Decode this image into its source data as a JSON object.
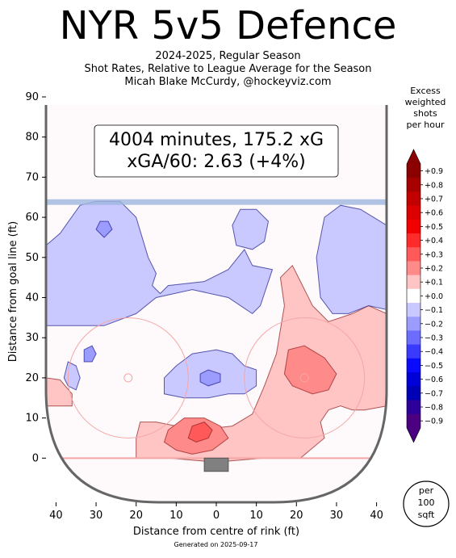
{
  "title": "NYR 5v5 Defence",
  "subtitle_lines": [
    "2024-2025, Regular Season",
    "Shot Rates, Relative to League Average for the Season",
    "Micah Blake McCurdy, @hockeyviz.com"
  ],
  "footer": "Generated on 2025-09-17",
  "summary_box": {
    "line1": "4004 minutes, 175.2 xG",
    "line2": "xGA/60: 2.63 (+4%)"
  },
  "legend": {
    "title_lines": [
      "Excess",
      "weighted",
      "shots",
      "per hour"
    ],
    "labels": [
      "+0.9",
      "+0.8",
      "+0.7",
      "+0.6",
      "+0.5",
      "+0.4",
      "+0.3",
      "+0.2",
      "+0.1",
      "+0.0",
      "−0.1",
      "−0.2",
      "−0.3",
      "−0.4",
      "−0.5",
      "−0.6",
      "−0.7",
      "−0.8",
      "−0.9"
    ],
    "colors": [
      "#8b0000",
      "#a60000",
      "#c20000",
      "#dd0000",
      "#f20000",
      "#ff2a2a",
      "#ff5959",
      "#ff8a8a",
      "#ffc4c4",
      "#ffffff",
      "#c9c9ff",
      "#9c9cff",
      "#6c6cff",
      "#3a3aff",
      "#0a0aff",
      "#0000d8",
      "#0000b5",
      "#2d009a",
      "#4b0082"
    ],
    "unit_badge": [
      "per",
      "100",
      "sqft"
    ]
  },
  "chart_data": {
    "type": "heatmap",
    "title": "NYR 5v5 Defence",
    "xlabel": "Distance from centre of rink (ft)",
    "ylabel": "Distance from goal line (ft)",
    "xlim": [
      -42.5,
      42.5
    ],
    "ylim": [
      -11,
      90
    ],
    "x_ticks": [
      {
        "v": -40,
        "label": "40"
      },
      {
        "v": -30,
        "label": "30"
      },
      {
        "v": -20,
        "label": "20"
      },
      {
        "v": -10,
        "label": "10"
      },
      {
        "v": 0,
        "label": "0"
      },
      {
        "v": 10,
        "label": "10"
      },
      {
        "v": 20,
        "label": "20"
      },
      {
        "v": 30,
        "label": "30"
      },
      {
        "v": 40,
        "label": "40"
      }
    ],
    "y_ticks": [
      0,
      10,
      20,
      30,
      40,
      50,
      60,
      70,
      80,
      90
    ],
    "value_range": [
      -0.9,
      0.9
    ],
    "regions": [
      {
        "level": 0.1,
        "points": [
          [
            -38,
            13
          ],
          [
            -42.5,
            13
          ],
          [
            -42.5,
            20
          ],
          [
            -39,
            19.5
          ],
          [
            -36,
            16
          ],
          [
            -36,
            13
          ]
        ]
      },
      {
        "level": 0.1,
        "points": [
          [
            -20,
            0
          ],
          [
            -20,
            5
          ],
          [
            -19,
            9
          ],
          [
            -15,
            9
          ],
          [
            -5,
            7
          ],
          [
            4,
            8
          ],
          [
            9,
            11
          ],
          [
            12,
            18
          ],
          [
            15,
            26
          ],
          [
            16,
            32
          ],
          [
            17,
            38
          ],
          [
            16,
            45
          ],
          [
            19,
            48
          ],
          [
            21,
            44
          ],
          [
            24,
            38
          ],
          [
            28,
            34
          ],
          [
            34,
            36
          ],
          [
            38,
            38
          ],
          [
            42.5,
            36
          ],
          [
            42.5,
            13
          ],
          [
            37,
            12
          ],
          [
            34,
            12
          ],
          [
            31,
            13
          ],
          [
            28,
            12
          ],
          [
            26,
            9
          ],
          [
            27,
            5
          ],
          [
            21,
            0
          ],
          [
            12,
            0
          ],
          [
            0,
            -1
          ],
          [
            -12,
            0
          ]
        ]
      },
      {
        "level": 0.2,
        "points": [
          [
            -13,
            4
          ],
          [
            -12,
            7
          ],
          [
            -8,
            10
          ],
          [
            -3,
            10
          ],
          [
            1,
            8
          ],
          [
            3,
            5
          ],
          [
            -1,
            2
          ],
          [
            -6,
            1
          ],
          [
            -10,
            2
          ]
        ]
      },
      {
        "level": 0.2,
        "points": [
          [
            18,
            27
          ],
          [
            17,
            21
          ],
          [
            19,
            18
          ],
          [
            24,
            16
          ],
          [
            28,
            17
          ],
          [
            30,
            21
          ],
          [
            27,
            25
          ],
          [
            22,
            28
          ]
        ]
      },
      {
        "level": 0.3,
        "points": [
          [
            -7,
            5
          ],
          [
            -6,
            8
          ],
          [
            -3,
            9
          ],
          [
            -1,
            7
          ],
          [
            -2,
            5
          ],
          [
            -5,
            4
          ]
        ]
      },
      {
        "level": -0.1,
        "points": [
          [
            -42.5,
            53
          ],
          [
            -39,
            56
          ],
          [
            -34,
            63
          ],
          [
            -30,
            64
          ],
          [
            -24,
            64
          ],
          [
            -20,
            60
          ],
          [
            -17,
            50
          ],
          [
            -15,
            46
          ],
          [
            -16,
            43
          ],
          [
            -14,
            41
          ],
          [
            -12,
            43
          ],
          [
            -3,
            44
          ],
          [
            3,
            47
          ],
          [
            7,
            52
          ],
          [
            9,
            48
          ],
          [
            14,
            47
          ],
          [
            11,
            38
          ],
          [
            9,
            36
          ],
          [
            3,
            40
          ],
          [
            -6,
            42
          ],
          [
            -15,
            40
          ],
          [
            -20,
            36
          ],
          [
            -28,
            33
          ],
          [
            -42.5,
            33
          ]
        ]
      },
      {
        "level": -0.1,
        "points": [
          [
            -37,
            18
          ],
          [
            -35,
            17
          ],
          [
            -34,
            20
          ],
          [
            -35,
            23
          ],
          [
            -37,
            24
          ],
          [
            -38,
            20
          ]
        ]
      },
      {
        "level": -0.1,
        "points": [
          [
            -13,
            16
          ],
          [
            -13,
            20
          ],
          [
            -10,
            23
          ],
          [
            -6,
            26
          ],
          [
            0,
            27
          ],
          [
            4,
            26
          ],
          [
            7,
            23
          ],
          [
            10,
            22
          ],
          [
            10,
            18
          ],
          [
            7,
            16
          ],
          [
            3,
            16
          ],
          [
            -2,
            15
          ],
          [
            -8,
            15
          ]
        ]
      },
      {
        "level": -0.1,
        "points": [
          [
            4,
            58
          ],
          [
            6,
            62
          ],
          [
            10,
            62
          ],
          [
            13,
            59
          ],
          [
            12,
            54
          ],
          [
            9,
            52
          ],
          [
            5,
            53
          ]
        ]
      },
      {
        "level": -0.1,
        "points": [
          [
            25,
            50
          ],
          [
            27,
            60
          ],
          [
            31,
            63
          ],
          [
            36,
            62
          ],
          [
            42.5,
            58
          ],
          [
            42.5,
            37
          ],
          [
            38,
            38
          ],
          [
            33,
            36
          ],
          [
            29,
            36
          ],
          [
            26,
            40
          ]
        ]
      },
      {
        "level": -0.2,
        "points": [
          [
            -30,
            57
          ],
          [
            -29,
            59
          ],
          [
            -27,
            59
          ],
          [
            -26,
            57
          ],
          [
            -28,
            55
          ]
        ]
      },
      {
        "level": -0.2,
        "points": [
          [
            -4,
            19
          ],
          [
            -4,
            21
          ],
          [
            -2,
            22
          ],
          [
            1,
            21
          ],
          [
            1,
            19
          ],
          [
            -2,
            18
          ]
        ]
      },
      {
        "level": -0.2,
        "points": [
          [
            -33,
            24
          ],
          [
            -33,
            27
          ],
          [
            -31,
            28
          ],
          [
            -30,
            26
          ],
          [
            -31,
            24
          ]
        ]
      }
    ]
  }
}
